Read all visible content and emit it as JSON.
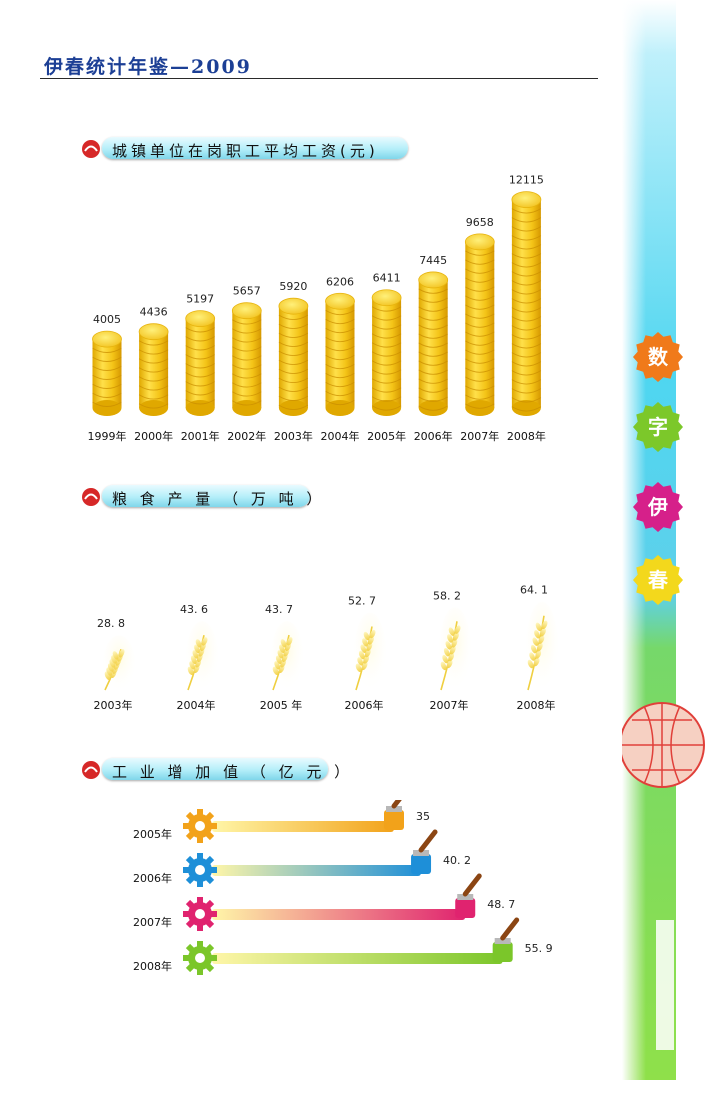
{
  "header": {
    "title": "伊春统计年鉴—2009"
  },
  "side_labels": [
    "数",
    "字",
    "伊",
    "春"
  ],
  "colors": {
    "title_blue": "#1c3f95",
    "coin_gold": "#f3c21c",
    "bar_2005": "#f2a21a",
    "bar_2006": "#1e8fd8",
    "bar_2007": "#e0236f",
    "bar_2008": "#7bc62a"
  },
  "chart_data": [
    {
      "type": "bar",
      "title": "城镇单位在岗职工平均工资(元)",
      "categories": [
        "1999年",
        "2000年",
        "2001年",
        "2002年",
        "2003年",
        "2004年",
        "2005年",
        "2006年",
        "2007年",
        "2008年"
      ],
      "values": [
        4005,
        4436,
        5197,
        5657,
        5920,
        6206,
        6411,
        7445,
        9658,
        12115
      ],
      "value_labels": [
        "4005",
        "4436",
        "5197",
        "5657",
        "5920",
        "6206",
        "6411",
        "7445",
        "9658",
        "12115"
      ],
      "style": "stacked coins"
    },
    {
      "type": "scatter",
      "title": "粮 食 产 量 （ 万 吨 ）",
      "categories": [
        "2003年",
        "2004年",
        "2005 年",
        "2006年",
        "2007年",
        "2008年"
      ],
      "values": [
        28.8,
        43.6,
        43.7,
        52.7,
        58.2,
        64.1
      ],
      "value_labels": [
        "28. 8",
        "43. 6",
        "43. 7",
        "52. 7",
        "58. 2",
        "64. 1"
      ],
      "style": "wheat ears"
    },
    {
      "type": "bar",
      "orientation": "horizontal",
      "title": "工 业 增 加 值 （ 亿 元 ）",
      "categories": [
        "2005年",
        "2006年",
        "2007年",
        "2008年"
      ],
      "values": [
        35,
        40.2,
        48.7,
        55.9
      ],
      "value_labels": [
        "35",
        "40. 2",
        "48. 7",
        "55. 9"
      ],
      "style": "paint brush strokes"
    }
  ]
}
